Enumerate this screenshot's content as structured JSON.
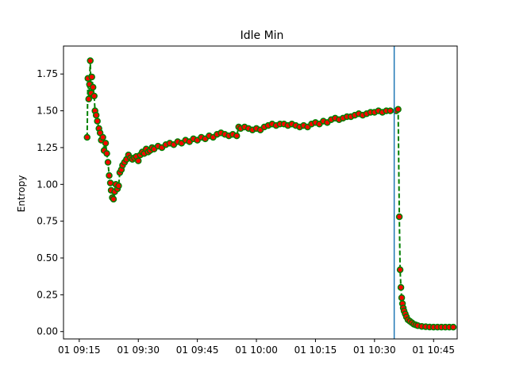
{
  "chart_data": {
    "type": "line",
    "title": "Idle Min",
    "xlabel": "",
    "ylabel": "Entropy",
    "x_axis": {
      "kind": "time",
      "range": [
        "09:11",
        "10:51"
      ],
      "ticks": [
        {
          "t": "09:15",
          "label": "01 09:15"
        },
        {
          "t": "09:30",
          "label": "01 09:30"
        },
        {
          "t": "09:45",
          "label": "01 09:45"
        },
        {
          "t": "10:00",
          "label": "01 10:00"
        },
        {
          "t": "10:15",
          "label": "01 10:15"
        },
        {
          "t": "10:30",
          "label": "01 10:30"
        },
        {
          "t": "10:45",
          "label": "01 10:45"
        }
      ]
    },
    "y_axis": {
      "range": [
        -0.05,
        1.94
      ],
      "ticks": [
        "0.00",
        "0.25",
        "0.50",
        "0.75",
        "1.00",
        "1.25",
        "1.50",
        "1.75"
      ]
    },
    "vertical_line": {
      "t": "10:35",
      "color": "#1f77b4"
    },
    "series": [
      {
        "style": "dashed line with markers",
        "line_color": "#008000",
        "marker_face": "#ff0000",
        "marker_edge": "#008000",
        "points": [
          [
            "09:17.0",
            1.32
          ],
          [
            "09:17.2",
            1.72
          ],
          [
            "09:17.4",
            1.58
          ],
          [
            "09:17.6",
            1.68
          ],
          [
            "09:17.8",
            1.84
          ],
          [
            "09:18.0",
            1.62
          ],
          [
            "09:18.2",
            1.73
          ],
          [
            "09:18.5",
            1.66
          ],
          [
            "09:18.8",
            1.6
          ],
          [
            "09:19.0",
            1.5
          ],
          [
            "09:19.3",
            1.47
          ],
          [
            "09:19.6",
            1.43
          ],
          [
            "09:20.0",
            1.38
          ],
          [
            "09:20.3",
            1.35
          ],
          [
            "09:20.6",
            1.3
          ],
          [
            "09:21.0",
            1.32
          ],
          [
            "09:21.3",
            1.23
          ],
          [
            "09:21.7",
            1.28
          ],
          [
            "09:22.0",
            1.21
          ],
          [
            "09:22.3",
            1.15
          ],
          [
            "09:22.6",
            1.06
          ],
          [
            "09:22.9",
            1.01
          ],
          [
            "09:23.1",
            0.96
          ],
          [
            "09:23.4",
            0.91
          ],
          [
            "09:23.7",
            0.9
          ],
          [
            "09:24.0",
            0.95
          ],
          [
            "09:24.3",
            1.0
          ],
          [
            "09:24.7",
            0.97
          ],
          [
            "09:25.0",
            0.99
          ],
          [
            "09:25.3",
            1.08
          ],
          [
            "09:25.7",
            1.1
          ],
          [
            "09:26.0",
            1.13
          ],
          [
            "09:26.5",
            1.15
          ],
          [
            "09:27.0",
            1.17
          ],
          [
            "09:27.5",
            1.2
          ],
          [
            "09:28.0",
            1.18
          ],
          [
            "09:28.5",
            1.17
          ],
          [
            "09:29.0",
            1.18
          ],
          [
            "09:29.5",
            1.19
          ],
          [
            "09:30.0",
            1.16
          ],
          [
            "09:30.5",
            1.2
          ],
          [
            "09:31.0",
            1.22
          ],
          [
            "09:31.5",
            1.21
          ],
          [
            "09:32.0",
            1.24
          ],
          [
            "09:32.5",
            1.22
          ],
          [
            "09:33.0",
            1.23
          ],
          [
            "09:33.5",
            1.25
          ],
          [
            "09:34.0",
            1.24
          ],
          [
            "09:35.0",
            1.26
          ],
          [
            "09:36.0",
            1.25
          ],
          [
            "09:37.0",
            1.27
          ],
          [
            "09:38.0",
            1.28
          ],
          [
            "09:39.0",
            1.27
          ],
          [
            "09:40.0",
            1.29
          ],
          [
            "09:41.0",
            1.28
          ],
          [
            "09:42.0",
            1.3
          ],
          [
            "09:43.0",
            1.29
          ],
          [
            "09:44.0",
            1.31
          ],
          [
            "09:45.0",
            1.3
          ],
          [
            "09:46.0",
            1.32
          ],
          [
            "09:47.0",
            1.31
          ],
          [
            "09:48.0",
            1.33
          ],
          [
            "09:49.0",
            1.32
          ],
          [
            "09:50.0",
            1.34
          ],
          [
            "09:51.0",
            1.35
          ],
          [
            "09:52.0",
            1.34
          ],
          [
            "09:53.0",
            1.33
          ],
          [
            "09:54.0",
            1.34
          ],
          [
            "09:55.0",
            1.33
          ],
          [
            "09:55.5",
            1.39
          ],
          [
            "09:56.0",
            1.38
          ],
          [
            "09:57.0",
            1.39
          ],
          [
            "09:58.0",
            1.38
          ],
          [
            "09:59.0",
            1.37
          ],
          [
            "10:00.0",
            1.38
          ],
          [
            "10:01.0",
            1.37
          ],
          [
            "10:02.0",
            1.39
          ],
          [
            "10:03.0",
            1.4
          ],
          [
            "10:04.0",
            1.41
          ],
          [
            "10:05.0",
            1.4
          ],
          [
            "10:06.0",
            1.41
          ],
          [
            "10:07.0",
            1.41
          ],
          [
            "10:08.0",
            1.4
          ],
          [
            "10:09.0",
            1.41
          ],
          [
            "10:10.0",
            1.4
          ],
          [
            "10:11.0",
            1.39
          ],
          [
            "10:12.0",
            1.4
          ],
          [
            "10:13.0",
            1.39
          ],
          [
            "10:14.0",
            1.41
          ],
          [
            "10:15.0",
            1.42
          ],
          [
            "10:16.0",
            1.41
          ],
          [
            "10:17.0",
            1.43
          ],
          [
            "10:18.0",
            1.42
          ],
          [
            "10:19.0",
            1.44
          ],
          [
            "10:20.0",
            1.45
          ],
          [
            "10:21.0",
            1.44
          ],
          [
            "10:22.0",
            1.45
          ],
          [
            "10:23.0",
            1.46
          ],
          [
            "10:24.0",
            1.46
          ],
          [
            "10:25.0",
            1.47
          ],
          [
            "10:26.0",
            1.48
          ],
          [
            "10:27.0",
            1.47
          ],
          [
            "10:28.0",
            1.48
          ],
          [
            "10:29.0",
            1.49
          ],
          [
            "10:30.0",
            1.49
          ],
          [
            "10:31.0",
            1.5
          ],
          [
            "10:32.0",
            1.49
          ],
          [
            "10:33.0",
            1.5
          ],
          [
            "10:34.0",
            1.5
          ],
          [
            "10:35.5",
            1.5
          ],
          [
            "10:36.0",
            1.51
          ],
          [
            "10:36.3",
            0.78
          ],
          [
            "10:36.5",
            0.42
          ],
          [
            "10:36.7",
            0.3
          ],
          [
            "10:36.9",
            0.23
          ],
          [
            "10:37.1",
            0.19
          ],
          [
            "10:37.3",
            0.16
          ],
          [
            "10:37.5",
            0.14
          ],
          [
            "10:37.8",
            0.12
          ],
          [
            "10:38.1",
            0.1
          ],
          [
            "10:38.5",
            0.08
          ],
          [
            "10:39.0",
            0.07
          ],
          [
            "10:39.5",
            0.06
          ],
          [
            "10:40.0",
            0.05
          ],
          [
            "10:40.5",
            0.045
          ],
          [
            "10:41.0",
            0.04
          ],
          [
            "10:42.0",
            0.035
          ],
          [
            "10:43.0",
            0.033
          ],
          [
            "10:44.0",
            0.031
          ],
          [
            "10:45.0",
            0.03
          ],
          [
            "10:46.0",
            0.03
          ],
          [
            "10:47.0",
            0.03
          ],
          [
            "10:48.0",
            0.03
          ],
          [
            "10:49.0",
            0.03
          ],
          [
            "10:50.0",
            0.03
          ]
        ]
      }
    ]
  }
}
